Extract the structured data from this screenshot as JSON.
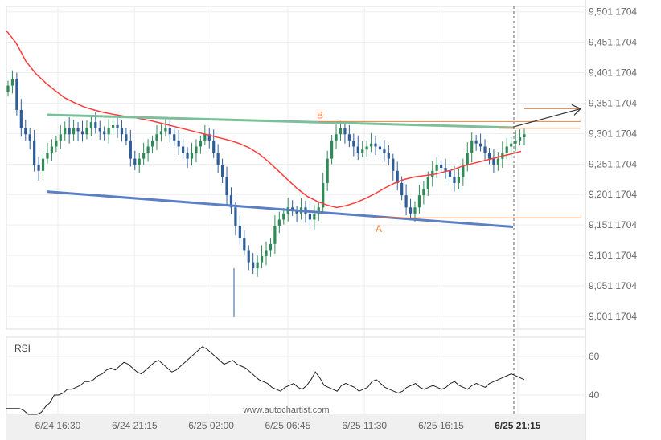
{
  "chart_data": {
    "type": "candlestick",
    "watermark": "www.autochartist.com",
    "y_axis": {
      "labels": [
        "9,501.1704",
        "9,451.1704",
        "9,401.1704",
        "9,351.1704",
        "9,301.1704",
        "9,251.1704",
        "9,201.1704",
        "9,151.1704",
        "9,101.1704",
        "9,051.1704",
        "9,001.1704"
      ],
      "range": [
        8980,
        9510
      ]
    },
    "x_axis": {
      "labels": [
        "6/24 16:30",
        "6/24 21:15",
        "6/25 02:00",
        "6/25 06:45",
        "6/25 11:30",
        "6/25 16:15",
        "6/25 21:15"
      ],
      "highlight_last": true
    },
    "rsi": {
      "title": "RSI",
      "labels": [
        "60",
        "40"
      ],
      "range": [
        30,
        70
      ],
      "values": [
        33,
        33,
        33,
        33,
        32,
        30,
        30,
        30,
        31,
        34,
        36,
        40,
        40,
        41,
        43,
        43,
        44,
        45,
        47,
        47,
        48,
        50,
        51,
        53,
        54,
        53,
        55,
        57,
        56,
        54,
        52,
        51,
        53,
        55,
        57,
        58,
        56,
        54,
        52,
        53,
        55,
        57,
        59,
        61,
        63,
        65,
        64,
        62,
        60,
        58,
        56,
        57,
        58,
        56,
        55,
        54,
        52,
        50,
        48,
        47,
        46,
        44,
        43,
        42,
        44,
        45,
        46,
        44,
        43,
        45,
        48,
        52,
        49,
        45,
        44,
        43,
        42,
        45,
        46,
        45,
        44,
        42,
        43,
        44,
        47,
        48,
        46,
        44,
        43,
        42,
        41,
        42,
        44,
        45,
        46,
        44,
        43,
        44,
        45,
        44,
        43,
        44,
        46,
        47,
        45,
        44,
        43,
        45,
        46,
        45,
        44,
        46,
        47,
        48,
        49,
        50,
        51,
        50,
        49,
        48
      ],
      "color": "#222222"
    },
    "price_values": [
      9380,
      9390,
      9340,
      9310,
      9300,
      9290,
      9250,
      9240,
      9260,
      9270,
      9280,
      9290,
      9300,
      9310,
      9300,
      9310,
      9305,
      9300,
      9310,
      9320,
      9310,
      9305,
      9300,
      9310,
      9315,
      9310,
      9300,
      9290,
      9260,
      9250,
      9260,
      9270,
      9280,
      9290,
      9300,
      9305,
      9310,
      9300,
      9290,
      9280,
      9270,
      9260,
      9270,
      9280,
      9290,
      9300,
      9290,
      9270,
      9250,
      9230,
      9200,
      9180,
      9150,
      9130,
      9110,
      9090,
      9080,
      9090,
      9100,
      9110,
      9120,
      9150,
      9160,
      9170,
      9180,
      9175,
      9170,
      9180,
      9170,
      9160,
      9170,
      9180,
      9220,
      9260,
      9290,
      9300,
      9310,
      9300,
      9290,
      9280,
      9270,
      9275,
      9280,
      9285,
      9280,
      9275,
      9270,
      9260,
      9240,
      9220,
      9200,
      9180,
      9170,
      9180,
      9200,
      9210,
      9230,
      9240,
      9250,
      9245,
      9240,
      9230,
      9220,
      9230,
      9250,
      9270,
      9290,
      9285,
      9280,
      9270,
      9260,
      9250,
      9260,
      9270,
      9280,
      9285,
      9290,
      9295,
      9300
    ],
    "price_color_up": "#2e8b57",
    "price_color_down": "#2f5d9a",
    "moving_average": {
      "values": [
        9470,
        9450,
        9420,
        9400,
        9385,
        9372,
        9360,
        9352,
        9345,
        9340,
        9336,
        9333,
        9330,
        9328,
        9325,
        9322,
        9318,
        9314,
        9310,
        9306,
        9302,
        9298,
        9294,
        9290,
        9285,
        9278,
        9268,
        9255,
        9240,
        9225,
        9210,
        9198,
        9190,
        9184,
        9180,
        9183,
        9188,
        9195,
        9203,
        9212,
        9220,
        9226,
        9230,
        9232,
        9234,
        9238,
        9242,
        9248,
        9252,
        9256,
        9260,
        9264,
        9268,
        9272
      ],
      "color": "#ff3b3b"
    },
    "resistance_line": {
      "start": 9332,
      "end": 9311,
      "color": "#7dbf9a"
    },
    "support_line": {
      "start": 9206,
      "end": 9148,
      "color": "#5b7fc4"
    },
    "levels": [
      9342,
      9321,
      9310,
      9163
    ],
    "level_color": "#f08040",
    "pattern_points": [
      {
        "label": "B",
        "value": 9321
      },
      {
        "label": "A",
        "value": 9163
      }
    ],
    "forecast_arrow": {
      "color": "#333333"
    }
  }
}
